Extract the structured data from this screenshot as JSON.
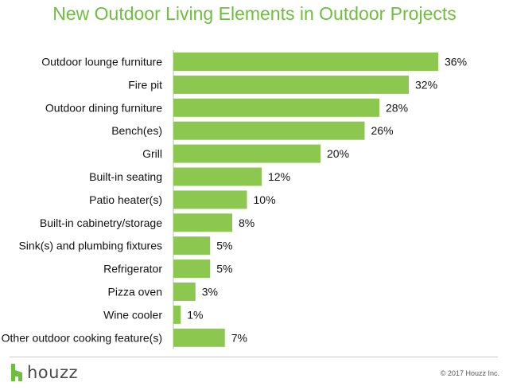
{
  "brand": {
    "logo_text": "houzz",
    "accent_color": "#6fbf3f"
  },
  "footer": {
    "copyright": "© 2017 Houzz Inc."
  },
  "chart_data": {
    "type": "bar",
    "orientation": "horizontal",
    "title": "New Outdoor Living Elements in Outdoor Projects",
    "categories": [
      "Outdoor lounge furniture",
      "Fire pit",
      "Outdoor dining furniture",
      "Bench(es)",
      "Grill",
      "Built-in seating",
      "Patio heater(s)",
      "Built-in cabinetry/storage",
      "Sink(s) and plumbing fixtures",
      "Refrigerator",
      "Pizza oven",
      "Wine cooler",
      "Other outdoor cooking feature(s)"
    ],
    "values": [
      36,
      32,
      28,
      26,
      20,
      12,
      10,
      8,
      5,
      5,
      3,
      1,
      7
    ],
    "value_labels": [
      "36%",
      "32%",
      "28%",
      "26%",
      "20%",
      "12%",
      "10%",
      "8%",
      "5%",
      "5%",
      "3%",
      "1%",
      "7%"
    ],
    "unit": "%",
    "xlim": [
      0,
      36
    ],
    "bar_color": "#8cc850",
    "grid": false,
    "legend": "none"
  }
}
